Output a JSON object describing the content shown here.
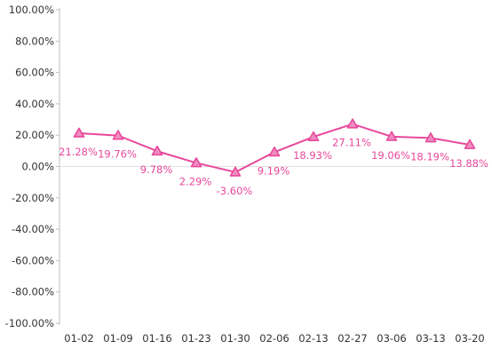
{
  "chart_data": {
    "type": "line",
    "categories": [
      "01-02",
      "01-09",
      "01-16",
      "01-23",
      "01-30",
      "02-06",
      "02-13",
      "02-27",
      "03-06",
      "03-13",
      "03-20"
    ],
    "series": [
      {
        "values": [
          21.28,
          19.76,
          9.78,
          2.29,
          -3.6,
          9.19,
          18.93,
          27.11,
          19.06,
          18.19,
          13.88
        ],
        "labels": [
          "21.28%",
          "19.76%",
          "9.78%",
          "2.29%",
          "-3.60%",
          "9.19%",
          "18.93%",
          "27.11%",
          "19.06%",
          "18.19%",
          "13.88%"
        ],
        "color": "#e8489b",
        "marker": "triangle",
        "marker_fill": "#f08cc0"
      }
    ],
    "yticks": [
      "100.00%",
      "80.00%",
      "60.00%",
      "40.00%",
      "20.00%",
      "0.00%",
      "-20.00%",
      "-40.00%",
      "-60.00%",
      "-80.00%",
      "-100.00%"
    ],
    "ylim": [
      -100,
      100
    ],
    "grid": false,
    "legend": "none",
    "colors": {
      "axis": "#bfbfbf",
      "zero_line": "#e0e0e0",
      "tick_text": "#333333"
    }
  }
}
